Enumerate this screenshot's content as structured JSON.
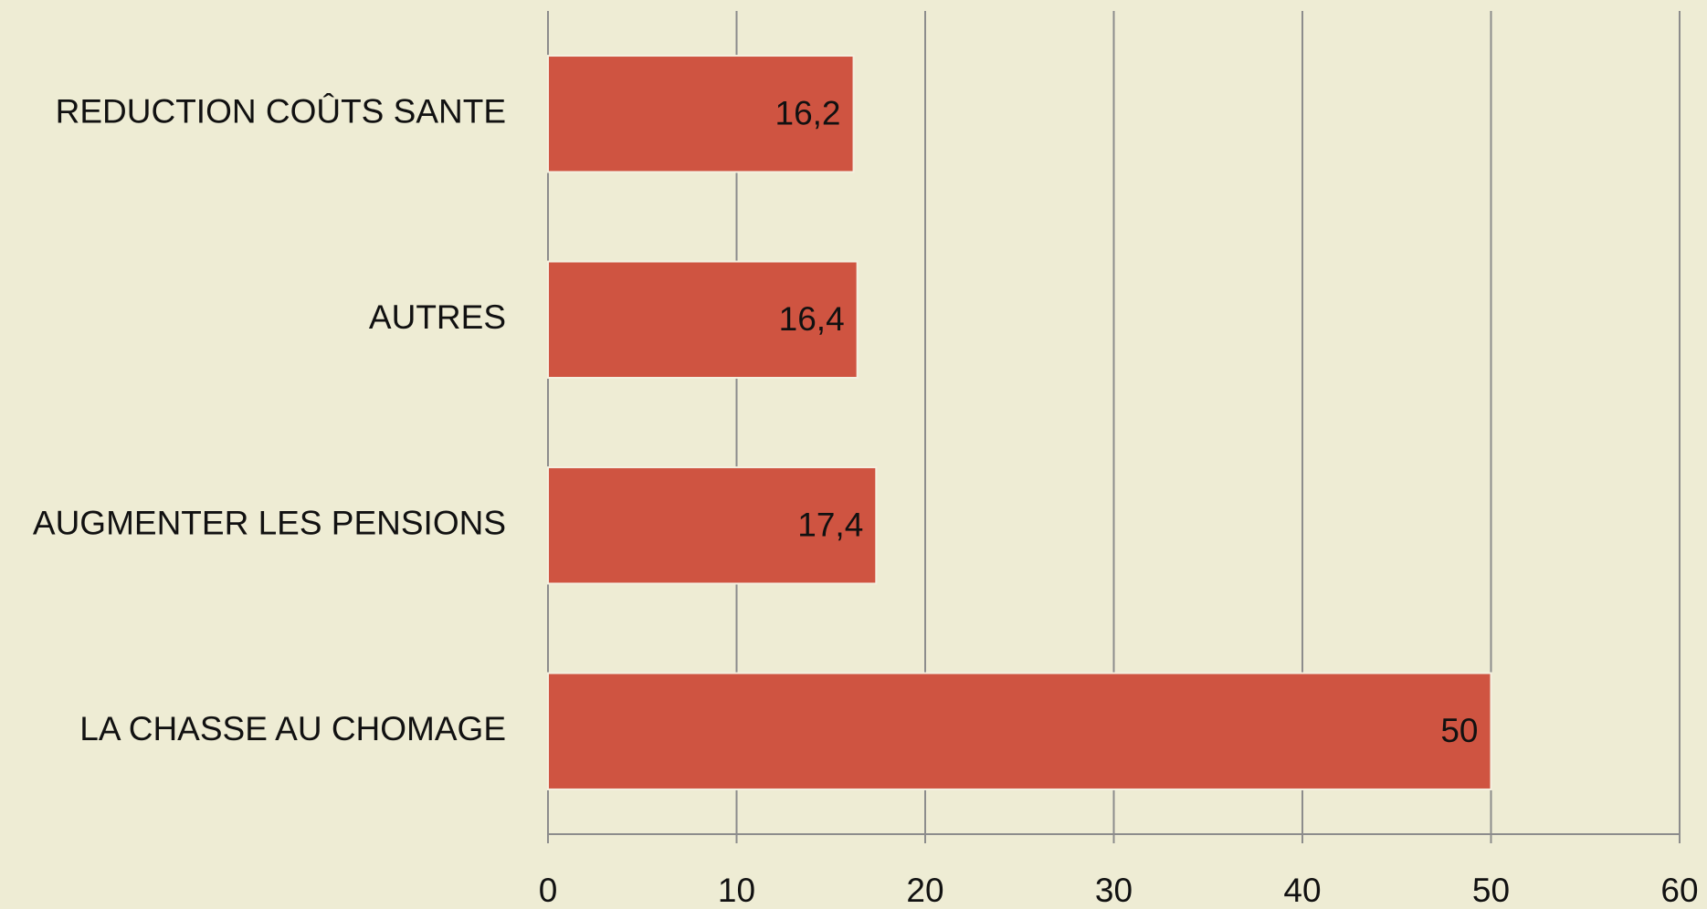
{
  "chart_data": {
    "type": "bar",
    "orientation": "horizontal",
    "categories": [
      "REDUCTION COÛTS SANTE",
      "AUTRES",
      "AUGMENTER LES PENSIONS",
      "LA CHASSE AU CHOMAGE"
    ],
    "values": [
      16.2,
      16.4,
      17.4,
      50
    ],
    "value_labels": [
      "16,2",
      "16,4",
      "17,4",
      "50"
    ],
    "color": "#cf5441",
    "xlim": [
      0,
      60
    ],
    "xticks": [
      0,
      10,
      20,
      30,
      40,
      50,
      60
    ],
    "grid": true
  }
}
